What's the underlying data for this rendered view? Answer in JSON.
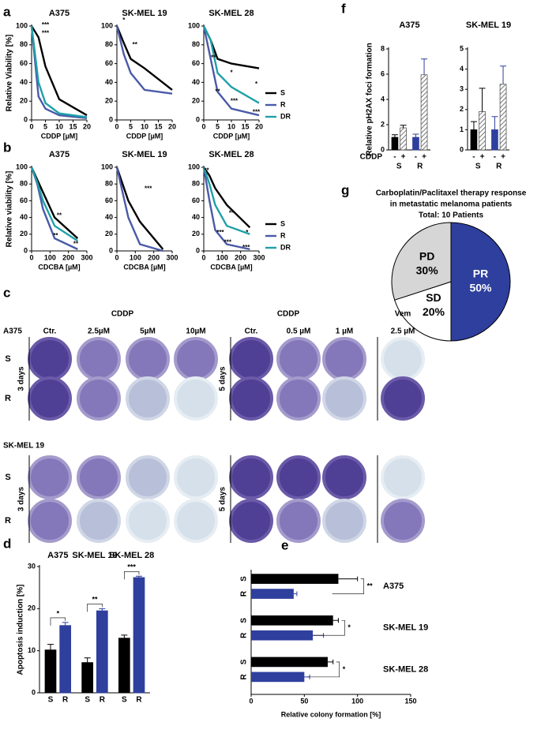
{
  "panel_labels": [
    "a",
    "b",
    "c",
    "d",
    "e",
    "f",
    "g"
  ],
  "chart_data": [
    {
      "type": "line",
      "title": "A375",
      "xlabel": "CDDP [µM]",
      "ylabel": "Relative Viability [%]",
      "x": [
        0,
        2.5,
        5,
        10,
        20
      ],
      "xlim": [
        0,
        20
      ],
      "xticks": [
        0,
        5,
        10,
        15,
        20
      ],
      "ylim": [
        0,
        100
      ],
      "yticks": [
        0,
        20,
        40,
        60,
        80,
        100
      ],
      "series": [
        {
          "name": "S",
          "color": "#000000",
          "values": [
            100,
            88,
            57,
            22,
            5
          ]
        },
        {
          "name": "R",
          "color": "#4a5aa8",
          "values": [
            100,
            25,
            12,
            5,
            2
          ]
        },
        {
          "name": "DR",
          "color": "#1fa0a8",
          "values": [
            100,
            40,
            18,
            7,
            3
          ]
        }
      ],
      "annotations": [
        "***",
        "***"
      ]
    },
    {
      "type": "line",
      "title": "SK-MEL 19",
      "xlabel": "CDDP [µM]",
      "x": [
        0,
        2.5,
        5,
        10,
        20
      ],
      "xlim": [
        0,
        20
      ],
      "xticks": [
        0,
        5,
        10,
        15,
        20
      ],
      "ylim": [
        0,
        100
      ],
      "yticks": [
        0,
        20,
        40,
        60,
        80,
        100
      ],
      "series": [
        {
          "name": "S",
          "color": "#000000",
          "values": [
            100,
            82,
            65,
            55,
            32
          ]
        },
        {
          "name": "R",
          "color": "#4a5aa8",
          "values": [
            100,
            70,
            50,
            32,
            28
          ]
        }
      ],
      "annotations": [
        "*",
        "**"
      ]
    },
    {
      "type": "line",
      "title": "SK-MEL 28",
      "xlabel": "CDDP [µM]",
      "x": [
        0,
        2.5,
        5,
        10,
        20
      ],
      "xlim": [
        0,
        20
      ],
      "xticks": [
        0,
        5,
        10,
        15,
        20
      ],
      "ylim": [
        0,
        100
      ],
      "yticks": [
        0,
        20,
        40,
        60,
        80,
        100
      ],
      "series": [
        {
          "name": "S",
          "color": "#000000",
          "values": [
            100,
            85,
            65,
            60,
            55
          ]
        },
        {
          "name": "R",
          "color": "#4a5aa8",
          "values": [
            100,
            65,
            30,
            12,
            5
          ]
        },
        {
          "name": "DR",
          "color": "#1fa0a8",
          "values": [
            100,
            85,
            50,
            35,
            18
          ]
        }
      ],
      "legend": "right",
      "annotations": [
        "**",
        "*",
        "**",
        "*",
        "***",
        "***"
      ]
    },
    {
      "type": "line",
      "title": "A375",
      "xlabel": "CDCBA [µM]",
      "ylabel": "Relative viability [%]",
      "x": [
        0,
        31,
        62,
        125,
        250
      ],
      "xlim": [
        0,
        300
      ],
      "xticks": [
        0,
        100,
        200,
        300
      ],
      "ylim": [
        0,
        100
      ],
      "yticks": [
        0,
        20,
        40,
        60,
        80,
        100
      ],
      "series": [
        {
          "name": "S",
          "color": "#000000",
          "values": [
            100,
            85,
            70,
            40,
            15
          ]
        },
        {
          "name": "R",
          "color": "#4a5aa8",
          "values": [
            100,
            80,
            50,
            15,
            2
          ]
        },
        {
          "name": "DR",
          "color": "#1fa0a8",
          "values": [
            100,
            82,
            60,
            30,
            12
          ]
        }
      ],
      "annotations": [
        "**",
        "**",
        "**"
      ]
    },
    {
      "type": "line",
      "title": "SK-MEL 19",
      "xlabel": "CDCBA [µM]",
      "x": [
        0,
        31,
        62,
        125,
        250
      ],
      "xlim": [
        0,
        300
      ],
      "xticks": [
        0,
        100,
        200,
        300
      ],
      "ylim": [
        0,
        100
      ],
      "yticks": [
        0,
        20,
        40,
        60,
        80,
        100
      ],
      "series": [
        {
          "name": "S",
          "color": "#000000",
          "values": [
            100,
            80,
            60,
            35,
            2
          ]
        },
        {
          "name": "R",
          "color": "#4a5aa8",
          "values": [
            100,
            70,
            40,
            8,
            0
          ]
        }
      ],
      "annotations": [
        "***"
      ]
    },
    {
      "type": "line",
      "title": "SK-MEL 28",
      "xlabel": "CDCBA [µM]",
      "x": [
        0,
        31,
        62,
        125,
        250
      ],
      "xlim": [
        0,
        300
      ],
      "xticks": [
        0,
        100,
        200,
        300
      ],
      "ylim": [
        0,
        100
      ],
      "yticks": [
        0,
        20,
        40,
        60,
        80,
        100
      ],
      "series": [
        {
          "name": "S",
          "color": "#000000",
          "values": [
            100,
            90,
            75,
            55,
            28
          ]
        },
        {
          "name": "R",
          "color": "#4a5aa8",
          "values": [
            100,
            60,
            25,
            8,
            2
          ]
        },
        {
          "name": "DR",
          "color": "#1fa0a8",
          "values": [
            100,
            80,
            55,
            30,
            20
          ]
        }
      ],
      "legend": "right",
      "annotations": [
        "**",
        "**",
        "*",
        "***",
        "***",
        "***"
      ]
    },
    {
      "type": "bar",
      "ylabel": "Apoptosis induction [%]",
      "categories": [
        "A375",
        "SK-MEL 19",
        "SK-MEL 28"
      ],
      "category_labels": "top",
      "ylim": [
        0,
        30
      ],
      "yticks": [
        0,
        10,
        20,
        30
      ],
      "series": [
        {
          "name": "S",
          "color": "#000000",
          "values": [
            10.2,
            7.2,
            13
          ],
          "errors": [
            1.3,
            1.1,
            0.7
          ]
        },
        {
          "name": "R",
          "color": "#2e3f9e",
          "values": [
            16,
            19.5,
            27.4
          ],
          "errors": [
            0.7,
            0.5,
            0.3
          ]
        }
      ],
      "annotations": [
        "*",
        "**",
        "***"
      ]
    },
    {
      "type": "hbar",
      "xlabel": "Relative colony formation [%]",
      "categories": [
        "A375",
        "SK-MEL 19",
        "SK-MEL 28"
      ],
      "xlim": [
        0,
        150
      ],
      "xticks": [
        0,
        50,
        100,
        150
      ],
      "series": [
        {
          "name": "S",
          "color": "#000000",
          "values": [
            82,
            77,
            72
          ],
          "errors": [
            18,
            5,
            5
          ]
        },
        {
          "name": "R",
          "color": "#2e3f9e",
          "values": [
            40,
            58,
            50
          ],
          "errors": [
            3,
            10,
            5
          ]
        }
      ],
      "annotations": [
        "**",
        "*",
        "*"
      ]
    },
    {
      "type": "bar",
      "title": "A375",
      "ylabel": "Relative pH2AX foci formation",
      "xlabel": "CDDP",
      "categories": [
        "S",
        "R"
      ],
      "category_labels": "bottom",
      "category_colors": [
        "#000000",
        "#2e3f9e"
      ],
      "ylim": [
        0,
        8
      ],
      "yticks": [
        0,
        2,
        4,
        6,
        8
      ],
      "series": [
        {
          "name": "-",
          "pattern": "solid",
          "values": [
            1,
            1
          ],
          "errors": [
            0.2,
            0.25
          ]
        },
        {
          "name": "+",
          "pattern": "hatched",
          "values": [
            1.75,
            5.95
          ],
          "errors": [
            0.2,
            1.25
          ]
        }
      ]
    },
    {
      "type": "bar",
      "title": "SK-MEL 19",
      "categories": [
        "S",
        "R"
      ],
      "category_labels": "bottom",
      "category_colors": [
        "#000000",
        "#2e3f9e"
      ],
      "ylim": [
        0,
        5
      ],
      "yticks": [
        0,
        1,
        2,
        3,
        4,
        5
      ],
      "series": [
        {
          "name": "-",
          "pattern": "solid",
          "values": [
            1,
            1
          ],
          "errors": [
            0.4,
            0.65
          ]
        },
        {
          "name": "+",
          "pattern": "hatched",
          "values": [
            1.9,
            3.25
          ],
          "errors": [
            1.15,
            0.9
          ]
        }
      ]
    },
    {
      "type": "pie",
      "title": [
        "Carboplatin/Paclitaxel therapy response",
        "in metastatic melanoma patients",
        "Total: 10 Patients"
      ],
      "categories": [
        "PR",
        "SD",
        "PD"
      ],
      "values": [
        50,
        20,
        30
      ],
      "value_labels": [
        "50%",
        "20%",
        "30%"
      ],
      "colors": [
        "#2e3f9e",
        "#ffffff",
        "#d6d6d6"
      ],
      "label_colors": [
        "#ffffff",
        "#000000",
        "#000000"
      ]
    }
  ],
  "panel_c": {
    "treatments": [
      "CDDP",
      "CDDP",
      "Vem"
    ],
    "left_columns": [
      "Ctr.",
      "2.5µM",
      "5µM",
      "10µM"
    ],
    "right_columns": [
      "Ctr.",
      "0.5 µM",
      "1 µM",
      "2.5 µM"
    ],
    "cell_lines": [
      "A375",
      "SK-MEL 19"
    ],
    "rows": [
      "S",
      "R"
    ],
    "durations": [
      "3 days",
      "5 days"
    ]
  }
}
